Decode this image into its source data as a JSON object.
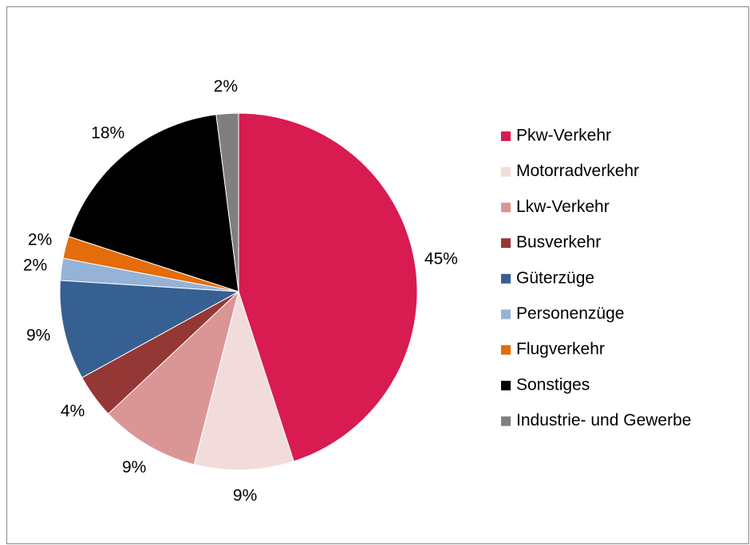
{
  "chart_data": {
    "type": "pie",
    "categories": [
      "Pkw-Verkehr",
      "Motorradverkehr",
      "Lkw-Verkehr",
      "Busverkehr",
      "Güterzüge",
      "Personenzüge",
      "Flugverkehr",
      "Sonstiges",
      "Industrie- und Gewerbe"
    ],
    "values": [
      45,
      9,
      9,
      4,
      9,
      2,
      2,
      18,
      2
    ],
    "value_labels": [
      "45%",
      "9%",
      "9%",
      "4%",
      "9%",
      "2%",
      "2%",
      "18%",
      "2%"
    ],
    "colors": [
      "#d81b50",
      "#f2dcdb",
      "#d99694",
      "#953735",
      "#376092",
      "#95b3d7",
      "#e46c0a",
      "#000000",
      "#7f7f7f"
    ],
    "legend": "right"
  }
}
